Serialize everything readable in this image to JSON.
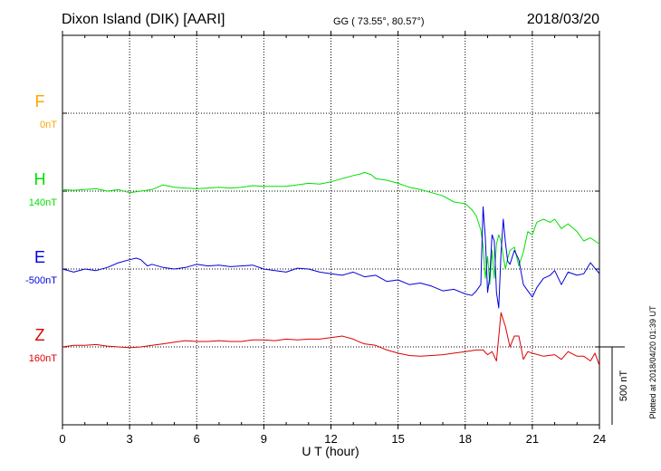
{
  "header": {
    "title": "Dixon Island (DIK)  [AARI]",
    "coords": "GG ( 73.55°,  80.57°)",
    "date": "2018/03/20"
  },
  "chart_data": {
    "type": "line",
    "xlabel": "U T (hour)",
    "xlim": [
      0,
      24
    ],
    "xticks": [
      0,
      3,
      6,
      9,
      12,
      15,
      18,
      21,
      24
    ],
    "xtick_labels": [
      "0",
      "3",
      "6",
      "9",
      "12",
      "15",
      "18",
      "21",
      "24"
    ],
    "grid": true,
    "units_per_division_nT": 500,
    "scale_bar_label": "500 nT",
    "footer_note": "Plotted at 2018/04/20 01:39 UT",
    "series": [
      {
        "name": "F",
        "baseline_label": "0nT",
        "color": "#FFA500",
        "x": [],
        "values": []
      },
      {
        "name": "H",
        "baseline_label": "140nT",
        "color": "#00E000",
        "x": [
          0,
          0.5,
          1,
          1.5,
          2,
          2.5,
          3,
          3.5,
          4,
          4.5,
          5,
          5.5,
          6,
          6.5,
          7,
          7.5,
          8,
          8.5,
          9,
          9.5,
          10,
          10.5,
          11,
          11.5,
          12,
          12.5,
          13,
          13.3,
          13.5,
          13.8,
          14,
          14.5,
          15,
          15.5,
          16,
          16.5,
          17,
          17.5,
          18,
          18.3,
          18.5,
          18.7,
          18.8,
          18.9,
          19,
          19.1,
          19.2,
          19.3,
          19.4,
          19.5,
          19.6,
          19.7,
          19.8,
          19.9,
          20,
          20.2,
          20.4,
          20.6,
          20.8,
          21,
          21.2,
          21.5,
          21.8,
          22,
          22.3,
          22.6,
          23,
          23.3,
          23.6,
          24
        ],
        "values": [
          10,
          5,
          10,
          15,
          0,
          10,
          -10,
          0,
          10,
          40,
          25,
          20,
          15,
          20,
          25,
          20,
          25,
          35,
          30,
          30,
          30,
          40,
          50,
          45,
          60,
          80,
          100,
          110,
          120,
          105,
          80,
          70,
          50,
          25,
          10,
          -10,
          -30,
          -70,
          -80,
          -120,
          -160,
          -250,
          -350,
          -560,
          -420,
          -600,
          -380,
          -560,
          -340,
          -280,
          -320,
          -420,
          -500,
          -430,
          -380,
          -360,
          -480,
          -390,
          -260,
          -280,
          -200,
          -180,
          -200,
          -180,
          -240,
          -210,
          -260,
          -320,
          -300,
          -340
        ]
      },
      {
        "name": "E",
        "baseline_label": "-500nT",
        "color": "#0000DD",
        "x": [
          0,
          0.5,
          1,
          1.5,
          2,
          2.5,
          3,
          3.3,
          3.5,
          3.8,
          4,
          4.5,
          5,
          5.5,
          6,
          6.5,
          7,
          7.5,
          8,
          8.5,
          9,
          9.5,
          10,
          10.5,
          11,
          11.5,
          12,
          12.5,
          13,
          13.5,
          14,
          14.5,
          15,
          15.5,
          16,
          16.5,
          17,
          17.5,
          18,
          18.3,
          18.5,
          18.7,
          18.8,
          18.9,
          19,
          19.1,
          19.2,
          19.3,
          19.4,
          19.5,
          19.6,
          19.7,
          19.8,
          19.9,
          20,
          20.2,
          20.4,
          20.6,
          20.8,
          21,
          21.2,
          21.5,
          21.8,
          22,
          22.3,
          22.6,
          23,
          23.3,
          23.6,
          24
        ],
        "values": [
          0,
          -20,
          0,
          -10,
          10,
          40,
          60,
          70,
          60,
          20,
          30,
          10,
          0,
          10,
          30,
          20,
          25,
          15,
          20,
          25,
          0,
          -10,
          -20,
          5,
          0,
          -20,
          -30,
          -40,
          -20,
          -50,
          -40,
          -80,
          -70,
          -100,
          -90,
          -110,
          -140,
          -130,
          -160,
          -170,
          -140,
          -100,
          400,
          200,
          -150,
          -50,
          220,
          180,
          -150,
          -250,
          100,
          320,
          170,
          50,
          30,
          120,
          60,
          -100,
          -140,
          -180,
          -120,
          -60,
          -40,
          -10,
          -100,
          -20,
          -40,
          -30,
          40,
          -30
        ]
      },
      {
        "name": "Z",
        "baseline_label": "160nT",
        "color": "#DD0000",
        "x": [
          0,
          0.5,
          1,
          1.5,
          2,
          2.5,
          3,
          3.5,
          4,
          4.5,
          5,
          5.5,
          6,
          6.5,
          7,
          7.5,
          8,
          8.5,
          9,
          9.5,
          10,
          10.5,
          11,
          11.5,
          12,
          12.5,
          13,
          13.3,
          13.5,
          14,
          14.5,
          15,
          15.5,
          16,
          16.5,
          17,
          17.5,
          18,
          18.5,
          18.8,
          19,
          19.2,
          19.4,
          19.6,
          19.8,
          20,
          20.2,
          20.4,
          20.6,
          20.8,
          21,
          21.5,
          22,
          22.3,
          22.6,
          23,
          23.3,
          23.6,
          23.8,
          24
        ],
        "values": [
          0,
          10,
          10,
          15,
          5,
          0,
          -5,
          0,
          10,
          20,
          30,
          40,
          35,
          35,
          40,
          35,
          35,
          45,
          45,
          40,
          50,
          45,
          50,
          50,
          60,
          70,
          50,
          30,
          20,
          10,
          -20,
          -40,
          -55,
          -60,
          -55,
          -50,
          -40,
          -30,
          -20,
          -20,
          -50,
          -30,
          -90,
          220,
          130,
          0,
          70,
          70,
          -80,
          -30,
          -40,
          -60,
          -50,
          -80,
          -30,
          -60,
          -60,
          -90,
          -40,
          -120
        ]
      }
    ]
  }
}
